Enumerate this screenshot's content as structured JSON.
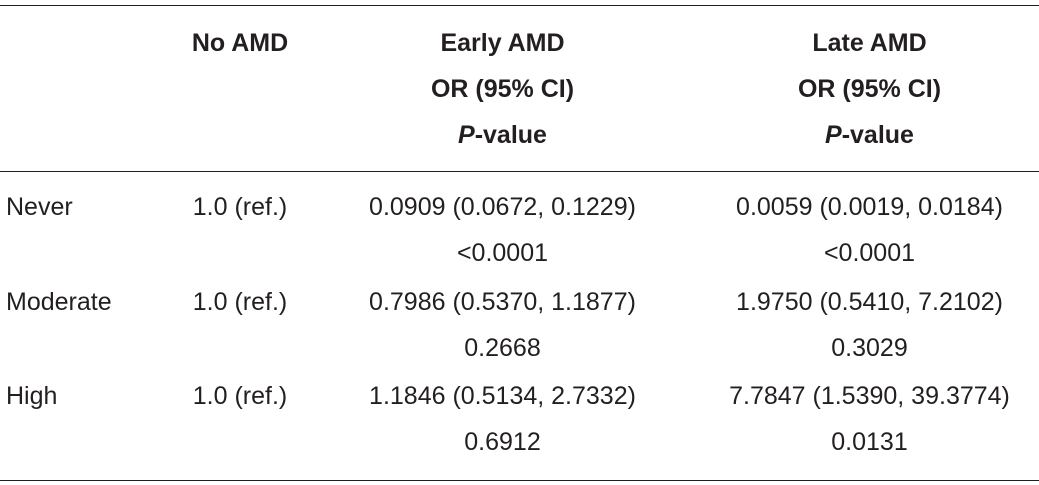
{
  "header": {
    "col_no_amd": "No AMD",
    "early": {
      "line1": "Early AMD",
      "line2": "OR (95% CI)",
      "p_italic": "P",
      "p_rest": "-value"
    },
    "late": {
      "line1": "Late AMD",
      "line2": "OR (95% CI)",
      "p_italic": "P",
      "p_rest": "-value"
    }
  },
  "rows": [
    {
      "label": "Never",
      "no_amd": "1.0 (ref.)",
      "early_or": "0.0909 (0.0672, 0.1229)",
      "early_p": "<0.0001",
      "late_or": "0.0059 (0.0019, 0.0184)",
      "late_p": "<0.0001"
    },
    {
      "label": "Moderate",
      "no_amd": "1.0 (ref.)",
      "early_or": "0.7986 (0.5370, 1.1877)",
      "early_p": "0.2668",
      "late_or": "1.9750 (0.5410, 7.2102)",
      "late_p": "0.3029"
    },
    {
      "label": "High",
      "no_amd": "1.0 (ref.)",
      "early_or": "1.1846 (0.5134, 2.7332)",
      "early_p": "0.6912",
      "late_or": "7.7847 (1.5390, 39.3774)",
      "late_p": "0.0131"
    }
  ]
}
